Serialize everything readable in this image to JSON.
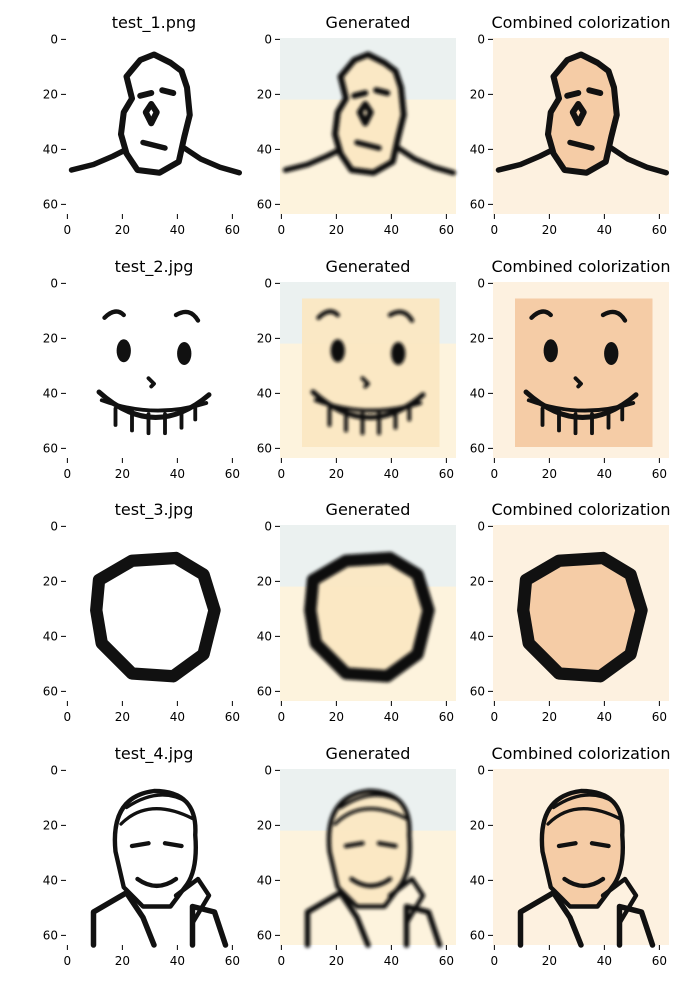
{
  "figure": {
    "rows": [
      {
        "titles": [
          "test_1.png",
          "Generated",
          "Combined colorization"
        ],
        "drawing": "face1"
      },
      {
        "titles": [
          "test_2.jpg",
          "Generated",
          "Combined colorization"
        ],
        "drawing": "face2"
      },
      {
        "titles": [
          "test_3.jpg",
          "Generated",
          "Combined colorization"
        ],
        "drawing": "blob"
      },
      {
        "titles": [
          "test_4.jpg",
          "Generated",
          "Combined colorization"
        ],
        "drawing": "man"
      }
    ],
    "panel_styles": [
      "original",
      "generated",
      "combined"
    ],
    "colors": {
      "ink": "#111111",
      "original_bg": "#ffffff",
      "generated_bg": "#fdf3dd",
      "generated_tint_blue": "#dcefff",
      "generated_fill": "#fbe7c2",
      "combined_bg": "#fdf1e0",
      "combined_fill": "#f4c9a2"
    }
  },
  "chart_data": {
    "type": "image_grid",
    "x_ticks": [
      "0",
      "20",
      "40",
      "60"
    ],
    "y_ticks": [
      "0",
      "20",
      "40",
      "60"
    ],
    "xlim": [
      0,
      63
    ],
    "ylim": [
      63,
      0
    ]
  }
}
